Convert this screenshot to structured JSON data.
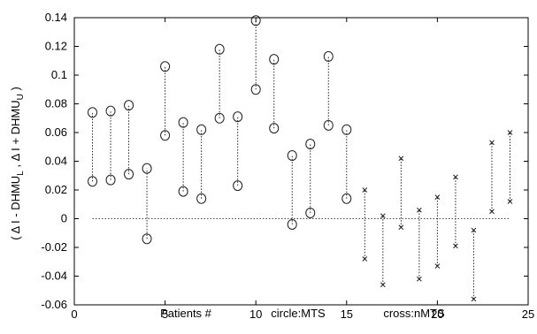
{
  "chart_data": {
    "type": "scatter",
    "title": "",
    "xlabel_parts": [
      "Patients #",
      "circle:MTS",
      "cross:nMTS"
    ],
    "ylabel": "( Δ I - DHMU",
    "ylabel_sub1": "L",
    "ylabel_mid": " , Δ I + DHMU",
    "ylabel_sub2": "U",
    "ylabel_end": " )",
    "xlim": [
      0,
      25
    ],
    "ylim": [
      -0.06,
      0.14
    ],
    "xticks": [
      0,
      5,
      10,
      15,
      20,
      25
    ],
    "yticks": [
      -0.06,
      -0.04,
      -0.02,
      0,
      0.02,
      0.04,
      0.06,
      0.08,
      0.1,
      0.12,
      0.14
    ],
    "ytick_labels": [
      "-0.06",
      "-0.04",
      "-0.02",
      "0",
      "0.02",
      "0.04",
      "0.06",
      "0.08",
      "0.1",
      "0.12",
      "0.14"
    ],
    "reference_line": {
      "y": 0,
      "x_range": [
        1,
        24
      ],
      "style": "dotted"
    },
    "series": [
      {
        "marker": "circle",
        "points": [
          {
            "x": 1,
            "lower": 0.026,
            "upper": 0.074
          },
          {
            "x": 2,
            "lower": 0.027,
            "upper": 0.075
          },
          {
            "x": 3,
            "lower": 0.031,
            "upper": 0.079
          },
          {
            "x": 4,
            "lower": -0.014,
            "upper": 0.035
          },
          {
            "x": 5,
            "lower": 0.058,
            "upper": 0.106
          },
          {
            "x": 6,
            "lower": 0.019,
            "upper": 0.067
          },
          {
            "x": 7,
            "lower": 0.014,
            "upper": 0.062
          },
          {
            "x": 8,
            "lower": 0.07,
            "upper": 0.118
          },
          {
            "x": 9,
            "lower": 0.023,
            "upper": 0.071
          },
          {
            "x": 10,
            "lower": 0.09,
            "upper": 0.138
          },
          {
            "x": 11,
            "lower": 0.063,
            "upper": 0.111
          },
          {
            "x": 12,
            "lower": -0.004,
            "upper": 0.044
          },
          {
            "x": 13,
            "lower": 0.004,
            "upper": 0.052
          },
          {
            "x": 14,
            "lower": 0.065,
            "upper": 0.113
          },
          {
            "x": 15,
            "lower": 0.014,
            "upper": 0.062
          }
        ]
      },
      {
        "marker": "cross",
        "points": [
          {
            "x": 16,
            "lower": -0.028,
            "upper": 0.02
          },
          {
            "x": 17,
            "lower": -0.046,
            "upper": 0.002
          },
          {
            "x": 18,
            "lower": -0.006,
            "upper": 0.042
          },
          {
            "x": 19,
            "lower": -0.042,
            "upper": 0.006
          },
          {
            "x": 20,
            "lower": -0.033,
            "upper": 0.015
          },
          {
            "x": 21,
            "lower": -0.019,
            "upper": 0.029
          },
          {
            "x": 22,
            "lower": -0.056,
            "upper": -0.008
          },
          {
            "x": 23,
            "lower": 0.005,
            "upper": 0.053
          },
          {
            "x": 24,
            "lower": 0.012,
            "upper": 0.06
          }
        ]
      }
    ]
  }
}
